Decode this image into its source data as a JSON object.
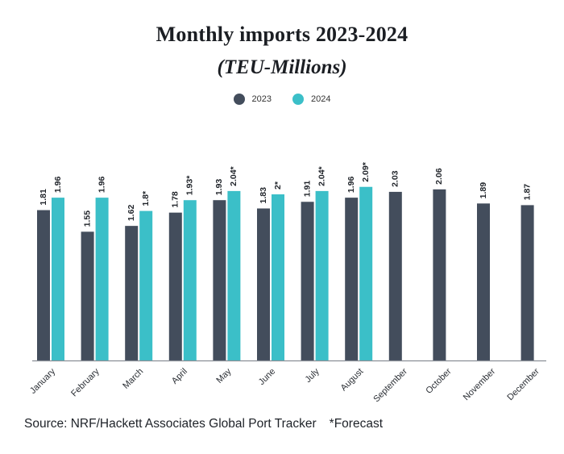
{
  "colors": {
    "series_2023": "#434d5c",
    "series_2024": "#3bbfc8",
    "axis": "#8a8f96",
    "text": "#1e2228"
  },
  "chart_data": {
    "type": "bar",
    "title": "Monthly imports 2023-2024",
    "subtitle": "(TEU-Millions)",
    "xlabel": "",
    "ylabel": "",
    "ylim": [
      0,
      2.1
    ],
    "grid": false,
    "legend_position": "top-center",
    "categories": [
      "January",
      "February",
      "March",
      "April",
      "May",
      "June",
      "July",
      "August",
      "September",
      "October",
      "November",
      "December"
    ],
    "series": [
      {
        "name": "2023",
        "values": [
          1.81,
          1.55,
          1.62,
          1.78,
          1.93,
          1.83,
          1.91,
          1.96,
          2.03,
          2.06,
          1.89,
          1.87
        ],
        "labels": [
          "1.81",
          "1.55",
          "1.62",
          "1.78",
          "1.93",
          "1.83",
          "1.91",
          "1.96",
          "2.03",
          "2.06",
          "1.89",
          "1.87"
        ]
      },
      {
        "name": "2024",
        "values": [
          1.96,
          1.96,
          1.8,
          1.93,
          2.04,
          2.0,
          2.04,
          2.09,
          null,
          null,
          null,
          null
        ],
        "labels": [
          "1.96",
          "1.96",
          "1.8*",
          "1.93*",
          "2.04*",
          "2*",
          "2.04*",
          "2.09*",
          null,
          null,
          null,
          null
        ]
      }
    ]
  },
  "footer": {
    "source": "Source: NRF/Hackett Associates Global Port Tracker",
    "forecast_note": "*Forecast"
  }
}
